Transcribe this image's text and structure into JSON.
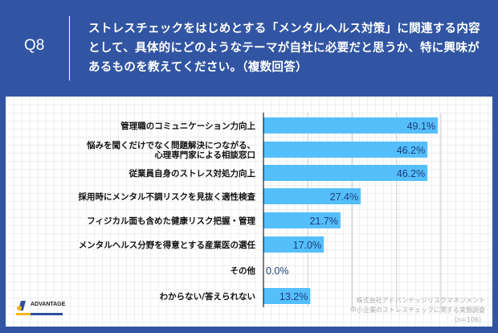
{
  "header": {
    "q": "Q8",
    "title": "ストレスチェックをはじめとする「メンタルヘルス対策」に関連する内容として、具体的にどのようなテーマが自社に必要だと思うか、特に興味があるものを教えてください。（複数回答）"
  },
  "source": {
    "line1": "株式会社アドバンテッジリスクマネジメント",
    "line2": "中小企業のストレスチェックに関する実態調査",
    "line3": "（n=106）"
  },
  "logo": {
    "text": "ADVANTAGE"
  },
  "colors": {
    "header": "#3155a2",
    "bar": "#55bffc"
  },
  "chart_data": {
    "type": "bar",
    "orientation": "horizontal",
    "xlim": [
      0,
      60
    ],
    "categories": [
      [
        "管理職のコミュニケーション力向上"
      ],
      [
        "悩みを聞くだけでなく問題解決につながる、",
        "心理専門家による相談窓口"
      ],
      [
        "従業員自身のストレス対処力向上"
      ],
      [
        "採用時にメンタル不調リスクを見抜く適性検査"
      ],
      [
        "フィジカル面も含めた健康リスク把握・管理"
      ],
      [
        "メンタルヘルス分野を得意とする産業医の選任"
      ],
      [
        "その他"
      ],
      [
        "わからない/答えられない"
      ]
    ],
    "values": [
      49.1,
      46.2,
      46.2,
      27.4,
      21.7,
      17.0,
      0.0,
      13.2
    ],
    "labels": [
      "49.1%",
      "46.2%",
      "46.2%",
      "27.4%",
      "21.7%",
      "17.0%",
      "0.0%",
      "13.2%"
    ]
  }
}
